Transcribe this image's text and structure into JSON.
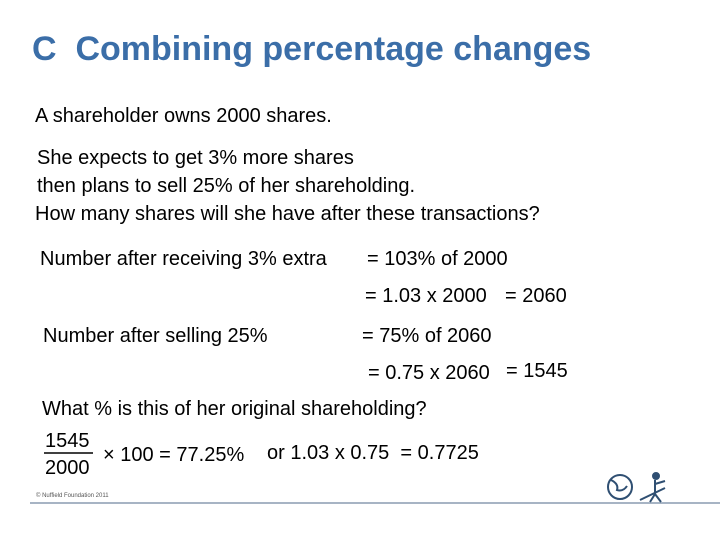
{
  "title": "C  Combining percentage changes",
  "intro": "A shareholder owns 2000 shares.",
  "question": [
    "She expects to get 3% more shares",
    "then plans to sell 25% of her shareholding.",
    "How many shares will she have after these transactions?"
  ],
  "steps": [
    {
      "label": "Number after receiving 3% extra",
      "lines": [
        "= 103% of 2000",
        "= 1.03 x 2000"
      ],
      "result": "= 2060"
    },
    {
      "label": "Number after selling 25%",
      "lines": [
        "= 75% of 2060",
        "= 0.75 x 2060"
      ],
      "result": "= 1545"
    }
  ],
  "follow_up": "What % is this of her original shareholding?",
  "fraction": {
    "numerator": "1545",
    "denominator": "2000"
  },
  "calculation": "× 100 = 77.25%",
  "alternative": "or 1.03 x 0.75  = 0.7725",
  "footer": "© Nuffield Foundation 2011"
}
